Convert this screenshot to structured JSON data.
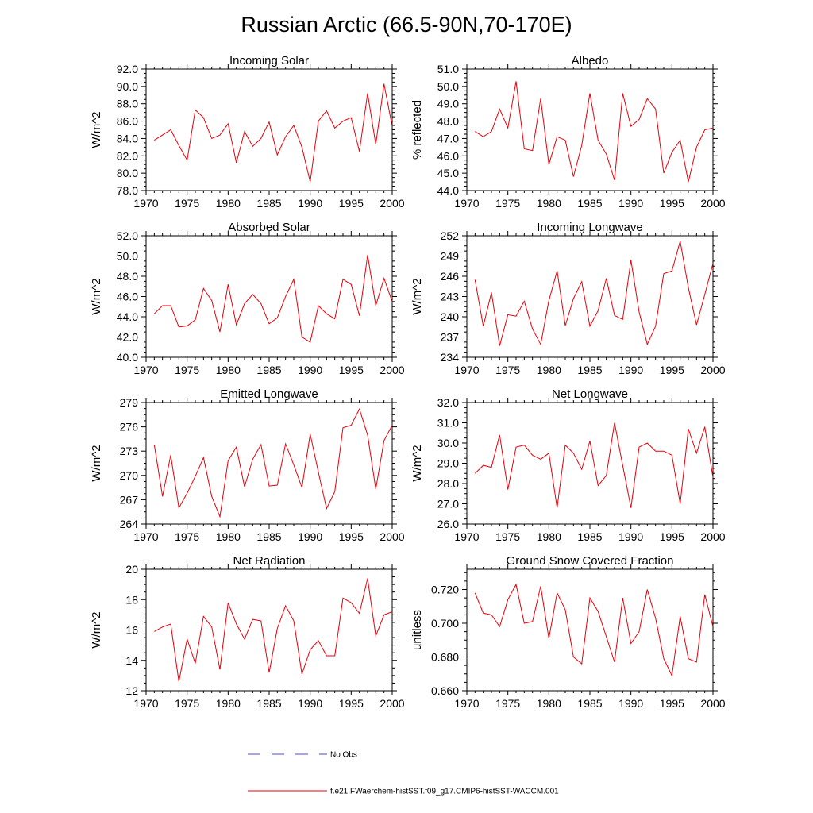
{
  "title": "Russian Arctic (66.5-90N,70-170E)",
  "legend": {
    "noobs_label": "No Obs",
    "model_label": "f.e21.FWaerchem-histSST.f09_g17.CMIP6-histSST-WACCM.001",
    "noobs_color": "#4a4ad0",
    "model_color": "#e8000b"
  },
  "chart_data": [
    {
      "type": "line",
      "title": "Incoming Solar",
      "ylabel": "W/m^2",
      "xlim": [
        1970,
        2000
      ],
      "ylim": [
        78,
        92
      ],
      "xticks": [
        "1970",
        "1975",
        "1980",
        "1985",
        "1990",
        "1995",
        "2000"
      ],
      "yticks": [
        "78.0",
        "80.0",
        "82.0",
        "84.0",
        "86.0",
        "88.0",
        "90.0",
        "92.0"
      ],
      "x": [
        1971,
        1972,
        1973,
        1974,
        1975,
        1976,
        1977,
        1978,
        1979,
        1980,
        1981,
        1982,
        1983,
        1984,
        1985,
        1986,
        1987,
        1988,
        1989,
        1990,
        1991,
        1992,
        1993,
        1994,
        1995,
        1996,
        1997,
        1998,
        1999,
        2000
      ],
      "series": [
        {
          "values": [
            83.8,
            84.4,
            85.0,
            83.2,
            81.5,
            87.3,
            86.4,
            84.0,
            84.4,
            85.7,
            81.2,
            84.8,
            83.1,
            84.0,
            85.9,
            82.1,
            84.2,
            85.5,
            83.0,
            79.0,
            86.0,
            87.2,
            85.2,
            86.0,
            86.4,
            82.5,
            89.2,
            83.3,
            90.3,
            85.4
          ]
        }
      ]
    },
    {
      "type": "line",
      "title": "Albedo",
      "ylabel": "% reflected",
      "xlim": [
        1970,
        2000
      ],
      "ylim": [
        44,
        51
      ],
      "xticks": [
        "1970",
        "1975",
        "1980",
        "1985",
        "1990",
        "1995",
        "2000"
      ],
      "yticks": [
        "44.0",
        "45.0",
        "46.0",
        "47.0",
        "48.0",
        "49.0",
        "50.0",
        "51.0"
      ],
      "x": [
        1971,
        1972,
        1973,
        1974,
        1975,
        1976,
        1977,
        1978,
        1979,
        1980,
        1981,
        1982,
        1983,
        1984,
        1985,
        1986,
        1987,
        1988,
        1989,
        1990,
        1991,
        1992,
        1993,
        1994,
        1995,
        1996,
        1997,
        1998,
        1999,
        2000
      ],
      "series": [
        {
          "values": [
            47.4,
            47.1,
            47.4,
            48.7,
            47.6,
            50.3,
            46.4,
            46.3,
            49.3,
            45.5,
            47.1,
            46.9,
            44.8,
            46.6,
            49.6,
            46.9,
            46.1,
            44.6,
            49.6,
            47.7,
            48.1,
            49.3,
            48.7,
            45.0,
            46.2,
            46.9,
            44.5,
            46.5,
            47.5,
            47.6
          ]
        }
      ]
    },
    {
      "type": "line",
      "title": "Absorbed Solar",
      "ylabel": "W/m^2",
      "xlim": [
        1970,
        2000
      ],
      "ylim": [
        40,
        52
      ],
      "xticks": [
        "1970",
        "1975",
        "1980",
        "1985",
        "1990",
        "1995",
        "2000"
      ],
      "yticks": [
        "40.0",
        "42.0",
        "44.0",
        "46.0",
        "48.0",
        "50.0",
        "52.0"
      ],
      "x": [
        1971,
        1972,
        1973,
        1974,
        1975,
        1976,
        1977,
        1978,
        1979,
        1980,
        1981,
        1982,
        1983,
        1984,
        1985,
        1986,
        1987,
        1988,
        1989,
        1990,
        1991,
        1992,
        1993,
        1994,
        1995,
        1996,
        1997,
        1998,
        1999,
        2000
      ],
      "series": [
        {
          "values": [
            44.3,
            45.1,
            45.1,
            43.0,
            43.1,
            43.7,
            46.8,
            45.6,
            42.5,
            47.2,
            43.2,
            45.3,
            46.2,
            45.3,
            43.3,
            43.9,
            46.0,
            47.7,
            42.0,
            41.5,
            45.1,
            44.3,
            43.8,
            47.7,
            47.2,
            44.1,
            50.1,
            45.1,
            47.8,
            45.5
          ]
        }
      ]
    },
    {
      "type": "line",
      "title": "Incoming Longwave",
      "ylabel": "W/m^2",
      "xlim": [
        1970,
        2000
      ],
      "ylim": [
        234,
        252
      ],
      "xticks": [
        "1970",
        "1975",
        "1980",
        "1985",
        "1990",
        "1995",
        "2000"
      ],
      "yticks": [
        "234",
        "237",
        "240",
        "243",
        "246",
        "249",
        "252"
      ],
      "x": [
        1971,
        1972,
        1973,
        1974,
        1975,
        1976,
        1977,
        1978,
        1979,
        1980,
        1981,
        1982,
        1983,
        1984,
        1985,
        1986,
        1987,
        1988,
        1989,
        1990,
        1991,
        1992,
        1993,
        1994,
        1995,
        1996,
        1997,
        1998,
        1999,
        2000
      ],
      "series": [
        {
          "values": [
            245.5,
            238.6,
            243.6,
            235.7,
            240.3,
            240.1,
            242.3,
            238.2,
            235.9,
            242.4,
            246.8,
            238.7,
            242.7,
            245.2,
            238.6,
            240.9,
            245.7,
            240.2,
            239.6,
            248.4,
            240.7,
            235.9,
            238.6,
            246.4,
            246.8,
            251.2,
            244.3,
            238.8,
            243.3,
            247.9
          ]
        }
      ]
    },
    {
      "type": "line",
      "title": "Emitted Longwave",
      "ylabel": "W/m^2",
      "xlim": [
        1970,
        2000
      ],
      "ylim": [
        264,
        279
      ],
      "xticks": [
        "1970",
        "1975",
        "1980",
        "1985",
        "1990",
        "1995",
        "2000"
      ],
      "yticks": [
        "264",
        "267",
        "270",
        "273",
        "276",
        "279"
      ],
      "x": [
        1971,
        1972,
        1973,
        1974,
        1975,
        1976,
        1977,
        1978,
        1979,
        1980,
        1981,
        1982,
        1983,
        1984,
        1985,
        1986,
        1987,
        1988,
        1989,
        1990,
        1991,
        1992,
        1993,
        1994,
        1995,
        1996,
        1997,
        1998,
        1999,
        2000
      ],
      "series": [
        {
          "values": [
            273.8,
            267.4,
            272.5,
            266.0,
            267.8,
            269.9,
            272.2,
            267.4,
            264.9,
            271.8,
            273.5,
            268.6,
            272.0,
            273.8,
            268.7,
            268.8,
            273.9,
            271.3,
            268.5,
            275.1,
            270.4,
            265.9,
            268.0,
            275.9,
            276.2,
            278.2,
            275.0,
            268.3,
            274.3,
            276.2
          ]
        }
      ]
    },
    {
      "type": "line",
      "title": "Net Longwave",
      "ylabel": "W/m^2",
      "xlim": [
        1970,
        2000
      ],
      "ylim": [
        26,
        32
      ],
      "xticks": [
        "1970",
        "1975",
        "1980",
        "1985",
        "1990",
        "1995",
        "2000"
      ],
      "yticks": [
        "26.0",
        "27.0",
        "28.0",
        "29.0",
        "30.0",
        "31.0",
        "32.0"
      ],
      "x": [
        1971,
        1972,
        1973,
        1974,
        1975,
        1976,
        1977,
        1978,
        1979,
        1980,
        1981,
        1982,
        1983,
        1984,
        1985,
        1986,
        1987,
        1988,
        1989,
        1990,
        1991,
        1992,
        1993,
        1994,
        1995,
        1996,
        1997,
        1998,
        1999,
        2000
      ],
      "series": [
        {
          "values": [
            28.5,
            28.9,
            28.8,
            30.4,
            27.7,
            29.8,
            29.9,
            29.4,
            29.2,
            29.5,
            26.8,
            29.9,
            29.5,
            28.7,
            30.1,
            27.9,
            28.4,
            31.0,
            28.9,
            26.8,
            29.8,
            30.0,
            29.6,
            29.6,
            29.4,
            27.0,
            30.7,
            29.5,
            30.8,
            28.3
          ]
        }
      ]
    },
    {
      "type": "line",
      "title": "Net Radiation",
      "ylabel": "W/m^2",
      "xlim": [
        1970,
        2000
      ],
      "ylim": [
        12,
        20
      ],
      "xticks": [
        "1970",
        "1975",
        "1980",
        "1985",
        "1990",
        "1995",
        "2000"
      ],
      "yticks": [
        "12",
        "14",
        "16",
        "18",
        "20"
      ],
      "x": [
        1971,
        1972,
        1973,
        1974,
        1975,
        1976,
        1977,
        1978,
        1979,
        1980,
        1981,
        1982,
        1983,
        1984,
        1985,
        1986,
        1987,
        1988,
        1989,
        1990,
        1991,
        1992,
        1993,
        1994,
        1995,
        1996,
        1997,
        1998,
        1999,
        2000
      ],
      "series": [
        {
          "values": [
            15.9,
            16.2,
            16.4,
            12.6,
            15.4,
            13.8,
            16.9,
            16.2,
            13.4,
            17.8,
            16.4,
            15.4,
            16.7,
            16.6,
            13.2,
            16.1,
            17.6,
            16.6,
            13.1,
            14.7,
            15.3,
            14.3,
            14.3,
            18.1,
            17.8,
            17.1,
            19.4,
            15.6,
            17.0,
            17.2
          ]
        }
      ]
    },
    {
      "type": "line",
      "title": "Ground Snow Covered Fraction",
      "ylabel": "unitless",
      "xlim": [
        1970,
        2000
      ],
      "ylim": [
        0.66,
        0.732
      ],
      "xticks": [
        "1970",
        "1975",
        "1980",
        "1985",
        "1990",
        "1995",
        "2000"
      ],
      "yticks": [
        "0.660",
        "0.680",
        "0.700",
        "0.720"
      ],
      "ytick_values": [
        0.66,
        0.68,
        0.7,
        0.72
      ],
      "x": [
        1971,
        1972,
        1973,
        1974,
        1975,
        1976,
        1977,
        1978,
        1979,
        1980,
        1981,
        1982,
        1983,
        1984,
        1985,
        1986,
        1987,
        1988,
        1989,
        1990,
        1991,
        1992,
        1993,
        1994,
        1995,
        1996,
        1997,
        1998,
        1999,
        2000
      ],
      "series": [
        {
          "values": [
            0.718,
            0.706,
            0.705,
            0.698,
            0.714,
            0.723,
            0.7,
            0.701,
            0.722,
            0.691,
            0.718,
            0.708,
            0.68,
            0.676,
            0.715,
            0.707,
            0.692,
            0.677,
            0.715,
            0.688,
            0.695,
            0.72,
            0.703,
            0.679,
            0.669,
            0.704,
            0.679,
            0.677,
            0.717,
            0.698
          ]
        }
      ]
    }
  ]
}
